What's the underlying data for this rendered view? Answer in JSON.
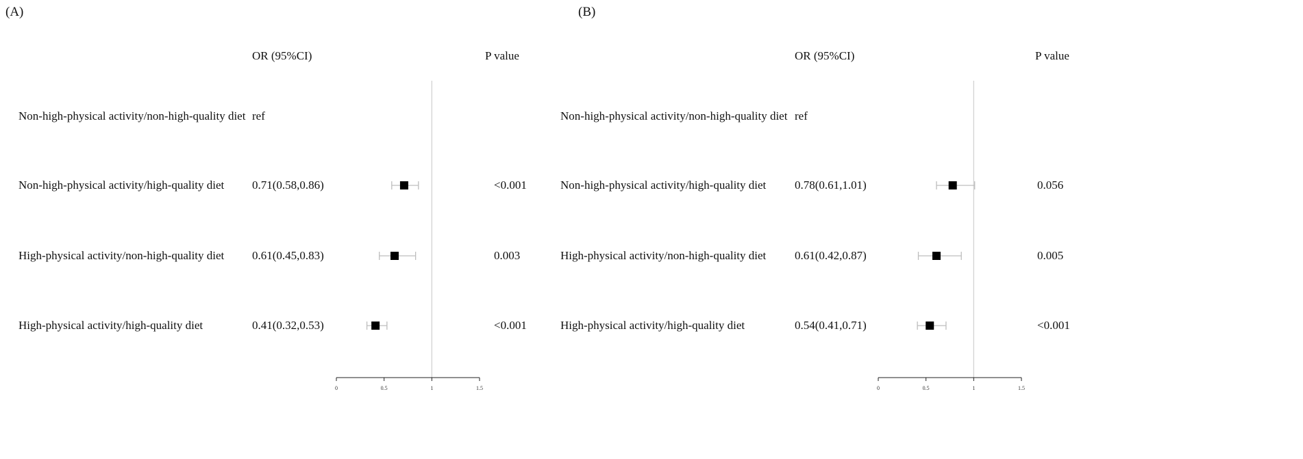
{
  "header": {
    "or_label": "OR (95%CI)",
    "p_label": "P value"
  },
  "chart_data": [
    {
      "panel": "(A)",
      "type": "forest",
      "xlim": [
        0,
        1.5
      ],
      "ticks": [
        0,
        0.5,
        1,
        1.5
      ],
      "tick_labels": [
        "0",
        "0.5",
        "1",
        "1.5"
      ],
      "ref_line": 1,
      "rows": [
        {
          "label": "Non-high-physical activity/non-high-quality diet",
          "or_text": "ref",
          "p_text": "",
          "or": null,
          "lo": null,
          "hi": null
        },
        {
          "label": "Non-high-physical activity/high-quality diet",
          "or_text": "0.71(0.58,0.86)",
          "p_text": "<0.001",
          "or": 0.71,
          "lo": 0.58,
          "hi": 0.86
        },
        {
          "label": "High-physical activity/non-high-quality diet",
          "or_text": "0.61(0.45,0.83)",
          "p_text": "0.003",
          "or": 0.61,
          "lo": 0.45,
          "hi": 0.83
        },
        {
          "label": "High-physical activity/high-quality diet",
          "or_text": "0.41(0.32,0.53)",
          "p_text": "<0.001",
          "or": 0.41,
          "lo": 0.32,
          "hi": 0.53
        }
      ]
    },
    {
      "panel": "(B)",
      "type": "forest",
      "xlim": [
        0,
        1.5
      ],
      "ticks": [
        0,
        0.5,
        1,
        1.5
      ],
      "tick_labels": [
        "0",
        "0.5",
        "1",
        "1.5"
      ],
      "ref_line": 1,
      "rows": [
        {
          "label": "Non-high-physical activity/non-high-quality diet",
          "or_text": "ref",
          "p_text": "",
          "or": null,
          "lo": null,
          "hi": null
        },
        {
          "label": "Non-high-physical activity/high-quality diet",
          "or_text": "0.78(0.61,1.01)",
          "p_text": "0.056",
          "or": 0.78,
          "lo": 0.61,
          "hi": 1.01
        },
        {
          "label": "High-physical activity/non-high-quality diet",
          "or_text": "0.61(0.42,0.87)",
          "p_text": "0.005",
          "or": 0.61,
          "lo": 0.42,
          "hi": 0.87
        },
        {
          "label": "High-physical activity/high-quality diet",
          "or_text": "0.54(0.41,0.71)",
          "p_text": "<0.001",
          "or": 0.54,
          "lo": 0.41,
          "hi": 0.71
        }
      ]
    }
  ]
}
